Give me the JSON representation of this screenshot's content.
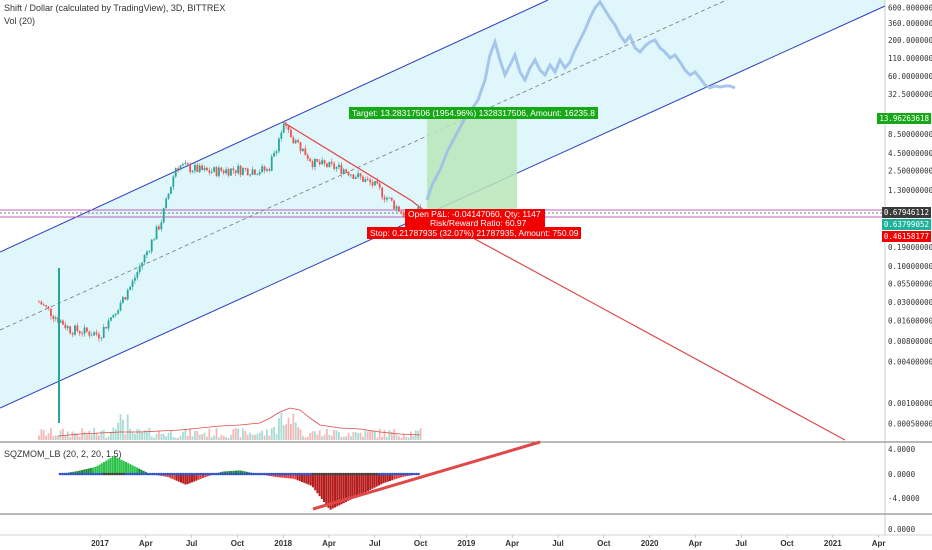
{
  "header": {
    "title": "Shift / Dollar (calculated by TradingView), 3D, BITTREX",
    "volume": "Vol (20)"
  },
  "indicator": {
    "label": "SQZMOM_LB (20, 2, 20, 1.5)"
  },
  "position": {
    "target_label": "Target: 13.28317506 (1954.96%) 1328317506, Amount: 16235.8",
    "open_label": "Open P&L: -0.04147060, Qty: 1147",
    "ratio_label": "Risk/Reward Ratio: 60.97",
    "stop_label": "Stop: 0.21787935 (32.07%) 21787935, Amount: 750.09"
  },
  "price_tags": {
    "target": "13.96263618",
    "current": "0.67946112",
    "entry": "0.63799052",
    "stop": "0.46158177"
  },
  "colors": {
    "channel_line": "#2a3fbf",
    "channel_fill": "#dff6fb",
    "resistance": "#e04848",
    "profit_zone": "#b8e6b8",
    "loss_zone": "#f6c6c6",
    "candle_up": "#26a69a",
    "candle_down": "#ef5350",
    "forecast": "#9bbde8",
    "target_tag": "#17a817",
    "stop_tag": "#f20000",
    "entry_tag": "#1fb29a",
    "current_tag": "#3b3b3b"
  },
  "chart_data": [
    {
      "type": "line",
      "series": [
        {
          "x": [
            "2016-09",
            "2016-11",
            "2017-01",
            "2017-03",
            "2017-05",
            "2017-06",
            "2017-08",
            "2017-10",
            "2017-12",
            "2018-01",
            "2018-03",
            "2018-05",
            "2018-07",
            "2018-08",
            "2018-09",
            "2018-10"
          ],
          "values": [
            0.03,
            0.012,
            0.01,
            0.05,
            0.45,
            3.0,
            2.4,
            2.6,
            2.5,
            11.0,
            3.2,
            2.6,
            1.5,
            0.9,
            0.55,
            0.68
          ]
        },
        {
          "x": [
            "2018-10",
            "2018-11",
            "2019-01",
            "2019-03",
            "2019-05",
            "2019-07",
            "2019-09",
            "2019-10",
            "2019-12",
            "2020-02",
            "2020-04",
            "2020-05"
          ],
          "values": [
            0.68,
            3.5,
            13.0,
            60.0,
            80.0,
            60.0,
            150.0,
            600.0,
            200.0,
            100.0,
            50.0,
            35.0
          ]
        }
      ],
      "y_scale": "log",
      "y_ticks": [
        "600.00000000",
        "360.00000000",
        "200.00000000",
        "110.00000000",
        "60.00000000",
        "32.50000000",
        "13.96263618",
        "8.50000000",
        "4.50000000",
        "2.50000000",
        "1.30000000",
        "0.67946112",
        "0.63799052",
        "0.46158177",
        "0.19000000",
        "0.10000000",
        "0.05500000",
        "0.03000000",
        "0.01600000",
        "0.00800000",
        "0.00400000",
        "0.00100000",
        "0.00050000"
      ],
      "x_ticks": [
        "2017",
        "Apr",
        "Jul",
        "Oct",
        "2018",
        "Apr",
        "Jul",
        "Oct",
        "2019",
        "Apr",
        "Jul",
        "Oct",
        "2020",
        "Apr",
        "Jul",
        "Oct",
        "2021",
        "Apr"
      ],
      "ylim": [
        0.0004,
        700
      ],
      "grid": false
    },
    {
      "type": "bar",
      "y_ticks": [
        "4.0000",
        "0.0000",
        "-4.0000"
      ],
      "values": [
        0,
        0.5,
        1.2,
        3.0,
        1.5,
        0,
        -0.5,
        -1.8,
        -0.6,
        0.4,
        0.6,
        0,
        -0.5,
        -0.8,
        -2.0,
        -6.0,
        -4.5,
        -3.0,
        -1.5,
        -0.5,
        0
      ]
    },
    {
      "type": "bar",
      "y_ticks": [
        "0.0000"
      ]
    }
  ]
}
